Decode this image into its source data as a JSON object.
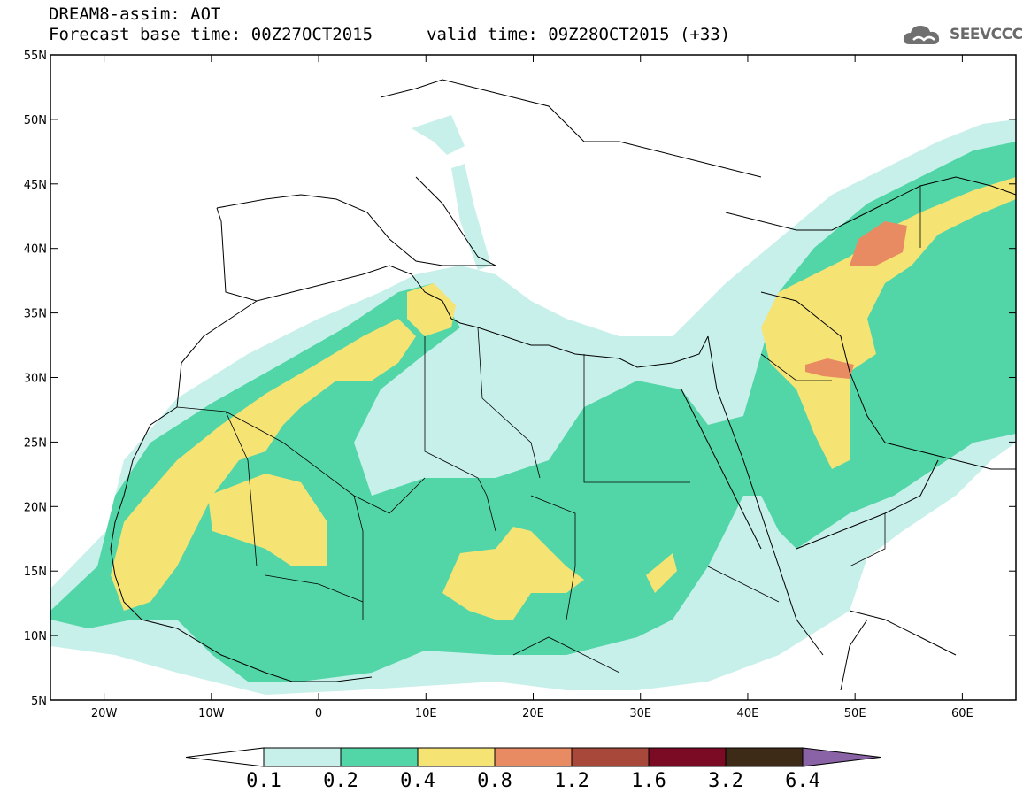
{
  "header": {
    "line1": "DREAM8-assim: AOT",
    "line2": "Forecast base time: 00Z27OCT2015",
    "line3": "valid time: 09Z28OCT2015 (+33)",
    "logo_text": "SEEVCCC"
  },
  "map": {
    "lon_range": [
      -25,
      65
    ],
    "lat_range": [
      5,
      55
    ],
    "lat_ticks": [
      "55N",
      "50N",
      "45N",
      "40N",
      "35N",
      "30N",
      "25N",
      "20N",
      "15N",
      "10N",
      "5N"
    ],
    "lon_ticks": [
      "20W",
      "10W",
      "0",
      "10E",
      "20E",
      "30E",
      "40E",
      "50E",
      "60E"
    ]
  },
  "colorbar": {
    "labels": [
      "0.1",
      "0.2",
      "0.4",
      "0.8",
      "1.2",
      "1.6",
      "3.2",
      "6.4"
    ],
    "colors": [
      "#ffffff",
      "#c8f0ea",
      "#52d6a8",
      "#f5e474",
      "#e98b62",
      "#a8483b",
      "#7b0a25",
      "#3d2a17",
      "#8a63a6"
    ]
  }
}
